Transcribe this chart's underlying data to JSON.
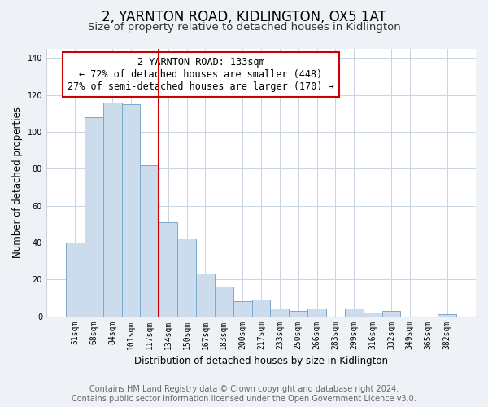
{
  "title": "2, YARNTON ROAD, KIDLINGTON, OX5 1AT",
  "subtitle": "Size of property relative to detached houses in Kidlington",
  "xlabel": "Distribution of detached houses by size in Kidlington",
  "ylabel": "Number of detached properties",
  "categories": [
    "51sqm",
    "68sqm",
    "84sqm",
    "101sqm",
    "117sqm",
    "134sqm",
    "150sqm",
    "167sqm",
    "183sqm",
    "200sqm",
    "217sqm",
    "233sqm",
    "250sqm",
    "266sqm",
    "283sqm",
    "299sqm",
    "316sqm",
    "332sqm",
    "349sqm",
    "365sqm",
    "382sqm"
  ],
  "values": [
    40,
    108,
    116,
    115,
    82,
    51,
    42,
    23,
    16,
    8,
    9,
    4,
    3,
    4,
    0,
    4,
    2,
    3,
    0,
    0,
    1
  ],
  "bar_color": "#ccdcec",
  "bar_edge_color": "#7aa8cc",
  "highlight_bar_index": 5,
  "highlight_line_color": "#cc0000",
  "annotation_text": "2 YARNTON ROAD: 133sqm\n← 72% of detached houses are smaller (448)\n27% of semi-detached houses are larger (170) →",
  "annotation_box_color": "#ffffff",
  "annotation_box_edge_color": "#cc0000",
  "ylim": [
    0,
    145
  ],
  "yticks": [
    0,
    20,
    40,
    60,
    80,
    100,
    120,
    140
  ],
  "footer_text": "Contains HM Land Registry data © Crown copyright and database right 2024.\nContains public sector information licensed under the Open Government Licence v3.0.",
  "background_color": "#eef2f7",
  "plot_background_color": "#ffffff",
  "title_fontsize": 12,
  "subtitle_fontsize": 9.5,
  "footer_fontsize": 7,
  "grid_color": "#c8d4e0"
}
